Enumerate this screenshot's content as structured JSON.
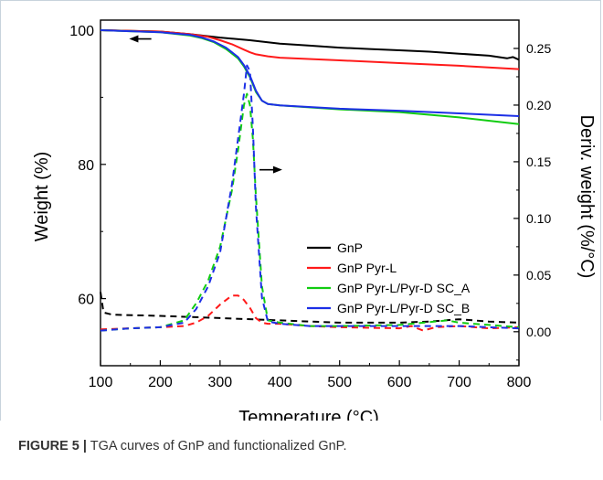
{
  "caption": {
    "label": "FIGURE 5 |",
    "text": " TGA curves of GnP and functionalized GnP."
  },
  "colors": {
    "GnP": "#000000",
    "GnP Pyr-L": "#ff1a1a",
    "GnP Pyr-L/Pyr-D SC_A": "#11cc11",
    "GnP Pyr-L/Pyr-D SC_B": "#1c2fe6"
  },
  "chart_data": {
    "type": "line",
    "title": "",
    "xlabel": "Temperature (°C)",
    "ylabel": "Weight (%)",
    "y2label": "Deriv. weight (%/°C)",
    "xlim": [
      100,
      800
    ],
    "ylim": [
      50,
      101.5
    ],
    "y2lim": [
      -0.03,
      0.275
    ],
    "x_ticks": [
      100,
      200,
      300,
      400,
      500,
      600,
      700,
      800
    ],
    "y_ticks": [
      60,
      80,
      100
    ],
    "y2_ticks": [
      0.0,
      0.05,
      0.1,
      0.15,
      0.2,
      0.25
    ],
    "y2_tick_labels": [
      "0.00",
      "0.05",
      "0.10",
      "0.15",
      "0.20",
      "0.25"
    ],
    "legend": [
      "GnP",
      "GnP Pyr-L",
      "GnP Pyr-L/Pyr-D SC_A",
      "GnP Pyr-L/Pyr-D SC_B"
    ],
    "legend_position": "center-right",
    "grid": false,
    "annotations": [
      "arrow pointing left (solid curves → left axis)",
      "arrow pointing right (dashed curves → right axis)"
    ],
    "series": [
      {
        "name": "GnP",
        "axis": "left",
        "style": "solid",
        "x": [
          100,
          200,
          250,
          300,
          350,
          400,
          450,
          500,
          550,
          600,
          650,
          700,
          750,
          780,
          790,
          800
        ],
        "y": [
          100,
          99.8,
          99.4,
          98.9,
          98.5,
          98.0,
          97.7,
          97.4,
          97.2,
          97.0,
          96.8,
          96.5,
          96.2,
          95.8,
          96.0,
          95.6
        ]
      },
      {
        "name": "GnP Pyr-L",
        "axis": "left",
        "style": "solid",
        "x": [
          100,
          200,
          250,
          280,
          300,
          320,
          340,
          350,
          360,
          380,
          400,
          500,
          600,
          700,
          800
        ],
        "y": [
          100,
          99.8,
          99.4,
          99.0,
          98.5,
          97.9,
          97.1,
          96.7,
          96.4,
          96.1,
          95.9,
          95.5,
          95.1,
          94.7,
          94.2
        ]
      },
      {
        "name": "GnP Pyr-L/Pyr-D SC_A",
        "axis": "left",
        "style": "solid",
        "x": [
          100,
          200,
          250,
          270,
          290,
          310,
          330,
          340,
          350,
          360,
          370,
          380,
          400,
          500,
          600,
          700,
          800
        ],
        "y": [
          100,
          99.7,
          99.2,
          98.8,
          98.2,
          97.2,
          95.8,
          94.6,
          93.0,
          90.8,
          89.5,
          89.0,
          88.8,
          88.2,
          87.8,
          87.0,
          86.0
        ]
      },
      {
        "name": "GnP Pyr-L/Pyr-D SC_B",
        "axis": "left",
        "style": "solid",
        "x": [
          100,
          200,
          250,
          270,
          290,
          310,
          330,
          340,
          350,
          360,
          370,
          380,
          400,
          500,
          600,
          700,
          800
        ],
        "y": [
          100,
          99.7,
          99.3,
          98.9,
          98.3,
          97.4,
          96.0,
          94.8,
          93.2,
          91.0,
          89.5,
          89.0,
          88.8,
          88.3,
          88.0,
          87.6,
          87.2
        ]
      },
      {
        "name": "GnP",
        "axis": "right",
        "style": "dashed",
        "x": [
          100,
          105,
          120,
          200,
          300,
          400,
          500,
          600,
          650,
          700,
          750,
          800
        ],
        "y": [
          0.035,
          0.017,
          0.015,
          0.014,
          0.012,
          0.01,
          0.008,
          0.008,
          0.009,
          0.011,
          0.009,
          0.008
        ]
      },
      {
        "name": "GnP Pyr-L",
        "axis": "right",
        "style": "dashed",
        "x": [
          100,
          150,
          200,
          240,
          260,
          280,
          300,
          320,
          330,
          340,
          350,
          360,
          370,
          380,
          400,
          450,
          500,
          600,
          620,
          640,
          660,
          700,
          750,
          800
        ],
        "y": [
          0.002,
          0.003,
          0.004,
          0.005,
          0.008,
          0.014,
          0.024,
          0.032,
          0.032,
          0.028,
          0.021,
          0.012,
          0.008,
          0.007,
          0.007,
          0.005,
          0.004,
          0.003,
          0.005,
          0.001,
          0.004,
          0.005,
          0.003,
          0.004
        ]
      },
      {
        "name": "GnP Pyr-L/Pyr-D SC_A",
        "axis": "right",
        "style": "dashed",
        "x": [
          100,
          150,
          200,
          240,
          260,
          280,
          300,
          320,
          330,
          340,
          345,
          350,
          355,
          360,
          370,
          380,
          400,
          450,
          500,
          600,
          680,
          700,
          750,
          800
        ],
        "y": [
          0.001,
          0.003,
          0.004,
          0.01,
          0.025,
          0.045,
          0.075,
          0.125,
          0.16,
          0.2,
          0.21,
          0.2,
          0.17,
          0.12,
          0.04,
          0.01,
          0.008,
          0.005,
          0.005,
          0.006,
          0.01,
          0.008,
          0.006,
          0.004
        ]
      },
      {
        "name": "GnP Pyr-L/Pyr-D SC_B",
        "axis": "right",
        "style": "dashed",
        "x": [
          100,
          150,
          200,
          240,
          260,
          280,
          300,
          320,
          330,
          340,
          345,
          350,
          355,
          360,
          370,
          380,
          400,
          450,
          500,
          600,
          700,
          750,
          800
        ],
        "y": [
          0.001,
          0.003,
          0.004,
          0.008,
          0.02,
          0.04,
          0.07,
          0.13,
          0.17,
          0.21,
          0.235,
          0.23,
          0.18,
          0.11,
          0.03,
          0.009,
          0.007,
          0.005,
          0.005,
          0.005,
          0.005,
          0.004,
          0.003
        ]
      }
    ]
  }
}
